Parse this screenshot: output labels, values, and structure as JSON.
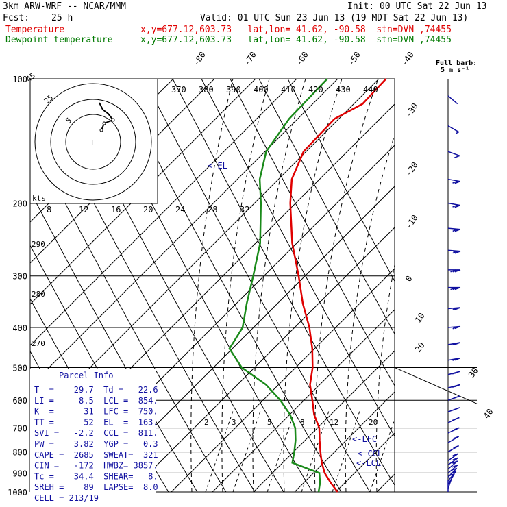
{
  "header": {
    "model": "3km ARW-WRF -- NCAR/MMM",
    "init": "Init: 00 UTC Sat 22 Jun 13",
    "fcst_label": "Fcst:",
    "fcst_value": "25 h",
    "valid": "Valid: 01 UTC Sun 23 Jun 13 (19 MDT Sat 22 Jun 13)",
    "temp_label": "Temperature",
    "dew_label": "Dewpoint temperature",
    "temp_info": "x,y=677.12,603.73   lat,lon= 41.62, -90.58  stn=DVN ,74455",
    "dew_info": "x,y=677.12,603.73   lat,lon= 41.62, -90.58  stn=DVN ,74455"
  },
  "barb_header": {
    "line1": "Full barb:",
    "line2": "5 m s⁻¹"
  },
  "colors": {
    "temperature": "#e00000",
    "dewpoint": "#1a8a1a",
    "parcel_text": "#1010a0",
    "grid": "#000000"
  },
  "chart_data": {
    "type": "line",
    "xlabel": "",
    "ylabel": "",
    "pressure_levels": [
      100,
      200,
      300,
      400,
      500,
      600,
      700,
      800,
      900,
      1000
    ],
    "isotherm_labels": [
      "-80",
      "-70",
      "-60",
      "-50",
      "-40",
      "-30",
      "-20",
      "-10",
      "0",
      "10",
      "20",
      "30",
      "40"
    ],
    "theta_labels": [
      "370",
      "380",
      "390",
      "400",
      "410",
      "420",
      "430",
      "440"
    ],
    "dry_adiabat_labels": [
      "290",
      "280",
      "270"
    ],
    "mixing_ratio_labels": [
      "2",
      "3",
      "5",
      "8",
      "12",
      "20"
    ],
    "hodograph": {
      "units": "kts",
      "ring_labels": [
        "5",
        "25",
        "45"
      ],
      "x_ticks": [
        "8",
        "12",
        "16",
        "20",
        "24",
        "28",
        "32"
      ]
    },
    "series": [
      {
        "name": "Temperature",
        "points": [
          [
            1000,
            29.7
          ],
          [
            950,
            25
          ],
          [
            900,
            20.5
          ],
          [
            850,
            17
          ],
          [
            800,
            14
          ],
          [
            750,
            11
          ],
          [
            700,
            8
          ],
          [
            650,
            3
          ],
          [
            600,
            -1
          ],
          [
            550,
            -5.5
          ],
          [
            500,
            -8.5
          ],
          [
            450,
            -13
          ],
          [
            400,
            -19
          ],
          [
            350,
            -27
          ],
          [
            300,
            -35
          ],
          [
            250,
            -45
          ],
          [
            200,
            -55
          ],
          [
            175,
            -60
          ],
          [
            150,
            -62
          ],
          [
            125,
            -58
          ],
          [
            115,
            -51
          ],
          [
            100,
            -48
          ]
        ]
      },
      {
        "name": "Dewpoint temperature",
        "points": [
          [
            1000,
            22.6
          ],
          [
            950,
            21
          ],
          [
            900,
            18.5
          ],
          [
            850,
            6
          ],
          [
            800,
            4.2
          ],
          [
            750,
            2
          ],
          [
            700,
            -1
          ],
          [
            650,
            -6
          ],
          [
            600,
            -13
          ],
          [
            550,
            -22
          ],
          [
            500,
            -35
          ],
          [
            450,
            -44
          ],
          [
            400,
            -44
          ],
          [
            350,
            -48
          ],
          [
            300,
            -52
          ],
          [
            250,
            -57
          ],
          [
            200,
            -66
          ],
          [
            175,
            -72
          ],
          [
            150,
            -76
          ],
          [
            125,
            -75
          ],
          [
            100,
            -70
          ]
        ]
      }
    ],
    "annotations": [
      "<-EL",
      "<-LFC",
      "<-CCL",
      "<-LCL"
    ],
    "wind_profile": [
      {
        "p": 1000,
        "speed": 2,
        "dir": 180
      },
      {
        "p": 980,
        "speed": 4,
        "dir": 200
      },
      {
        "p": 960,
        "speed": 5,
        "dir": 210
      },
      {
        "p": 940,
        "speed": 6,
        "dir": 220
      },
      {
        "p": 920,
        "speed": 7,
        "dir": 225
      },
      {
        "p": 900,
        "speed": 7,
        "dir": 230
      },
      {
        "p": 880,
        "speed": 8,
        "dir": 230
      },
      {
        "p": 860,
        "speed": 8,
        "dir": 235
      },
      {
        "p": 840,
        "speed": 8,
        "dir": 235
      },
      {
        "p": 800,
        "speed": 8,
        "dir": 240
      },
      {
        "p": 760,
        "speed": 9,
        "dir": 240
      },
      {
        "p": 720,
        "speed": 9,
        "dir": 245
      },
      {
        "p": 680,
        "speed": 10,
        "dir": 245
      },
      {
        "p": 640,
        "speed": 10,
        "dir": 250
      },
      {
        "p": 600,
        "speed": 11,
        "dir": 250
      },
      {
        "p": 560,
        "speed": 11,
        "dir": 255
      },
      {
        "p": 520,
        "speed": 12,
        "dir": 255
      },
      {
        "p": 480,
        "speed": 12,
        "dir": 260
      },
      {
        "p": 440,
        "speed": 13,
        "dir": 260
      },
      {
        "p": 400,
        "speed": 13,
        "dir": 265
      },
      {
        "p": 360,
        "speed": 14,
        "dir": 265
      },
      {
        "p": 320,
        "speed": 15,
        "dir": 270
      },
      {
        "p": 290,
        "speed": 15,
        "dir": 270
      },
      {
        "p": 260,
        "speed": 14,
        "dir": 275
      },
      {
        "p": 230,
        "speed": 13,
        "dir": 275
      },
      {
        "p": 200,
        "speed": 12,
        "dir": 280
      },
      {
        "p": 175,
        "speed": 10,
        "dir": 280
      },
      {
        "p": 150,
        "speed": 7,
        "dir": 290
      },
      {
        "p": 130,
        "speed": 4,
        "dir": 300
      },
      {
        "p": 110,
        "speed": 2,
        "dir": 310
      }
    ]
  },
  "parcel": {
    "title": "Parcel Info",
    "rows": [
      "T  =    29.7  Td =   22.6",
      "LI =    -8.5  LCL =  854.",
      "K  =      31  LFC =  750.",
      "TT =      52  EL  =  163.",
      "SVI =   -2.2  CCL =  811.",
      "PW =    3.82  YGP =   0.3",
      "CAPE =  2685  SWEAT=  321",
      "CIN =   -172  HWBZ= 3857.",
      "Tc =    34.4  SHEAR=   8.",
      "SREH =    89  LAPSE=  8.0",
      "CELL = 213/19"
    ]
  }
}
